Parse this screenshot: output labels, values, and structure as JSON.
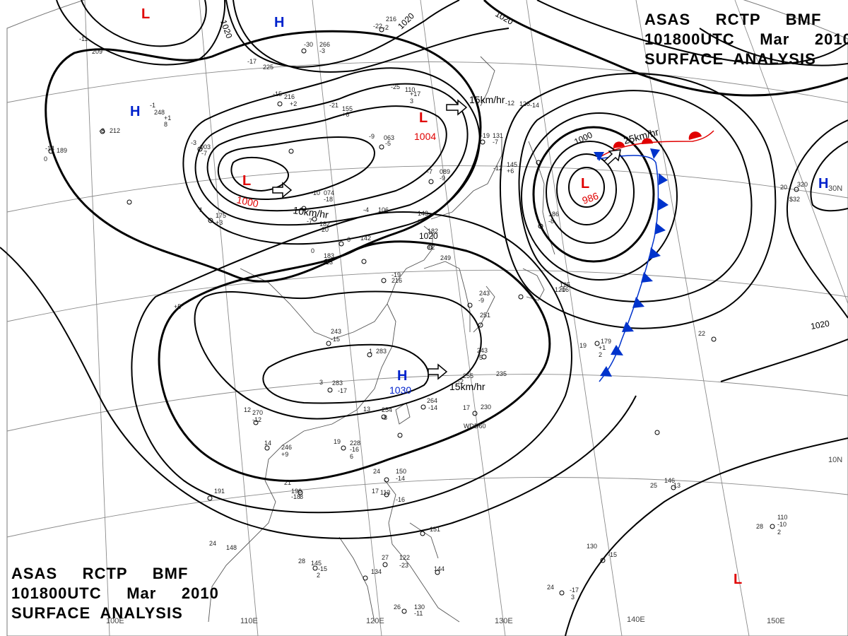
{
  "title": {
    "line1": "ASAS     RCTP     BMF",
    "line2": "101800UTC     Mar     2010",
    "line3": "SURFACE  ANALYSIS"
  },
  "colors": {
    "high": "#0022cc",
    "low": "#e00000",
    "cold_front": "#0033cc",
    "warm_front": "#e00000",
    "isobar": "#000000",
    "coast": "#444444",
    "grid": "#777777"
  },
  "longitude_labels": [
    "100E",
    "110E",
    "120E",
    "130E",
    "140E",
    "150E"
  ],
  "latitude_labels": [
    "30N",
    "10N"
  ],
  "pressure_centers": [
    {
      "type": "L",
      "value": ""
    },
    {
      "type": "H",
      "value": ""
    },
    {
      "type": "H",
      "value": ""
    },
    {
      "type": "L",
      "value": "1004"
    },
    {
      "type": "L",
      "value": "1000"
    },
    {
      "type": "L",
      "value": "986"
    },
    {
      "type": "H",
      "value": "1030"
    },
    {
      "type": "H",
      "value": ""
    },
    {
      "type": "L",
      "value": ""
    }
  ],
  "isobar_labels": [
    "1020",
    "1020",
    "1020",
    "1020",
    "1000",
    "1020"
  ],
  "motion_labels": [
    "15km/hr",
    "10km/hr",
    "25km/hr",
    "15km/hr"
  ],
  "station_labels": [
    "216",
    "-22",
    "-2",
    "266",
    "-30",
    "-3",
    "209",
    "-11",
    "225",
    "-17",
    "248",
    "-1",
    "+1",
    "8",
    "212",
    "-8",
    "189",
    "-14",
    "0",
    "155",
    "-21",
    "+6",
    "110",
    "-25",
    "+17",
    "3",
    "216",
    "-15",
    "+2",
    "003",
    "-3",
    "-7",
    "126",
    "-12",
    "-14",
    "063",
    "-9",
    "-5",
    "131",
    "-19",
    "-7",
    "145",
    "-12",
    "+6",
    "089",
    "-7",
    "-9",
    "074",
    "-10",
    "-18",
    "106",
    "-4",
    "143",
    "-9",
    "175",
    "1",
    "+3",
    "182",
    "-7",
    "-20",
    "142",
    "-6",
    "183",
    "0",
    "-13",
    "182",
    "+2",
    "249",
    "216",
    "-19",
    "243",
    "-9",
    "251",
    "243",
    "-15",
    "283",
    "1",
    "283",
    "3",
    "-17",
    "243",
    "-5",
    "255",
    "-2",
    "235",
    "+5",
    "270",
    "12",
    "-12",
    "264",
    "-14",
    "254",
    "13",
    "-8",
    "230",
    "17",
    "WDD60",
    "246",
    "14",
    "+9",
    "228",
    "19",
    "-16",
    "6",
    "196",
    "21",
    "-18",
    "8",
    "191",
    "150",
    "24",
    "-14",
    "113",
    "17",
    "-16",
    "151",
    "148",
    "24",
    "145",
    "28",
    "-15",
    "2",
    "122",
    "27",
    "-23",
    "144",
    "134",
    "130",
    "26",
    "-11",
    "179",
    "19",
    "+1",
    "2",
    "146",
    "25",
    "-13",
    "110",
    "28",
    "-10",
    "2",
    "130",
    "-15",
    "24",
    "-17",
    "3",
    "320",
    "20",
    "$32",
    "22",
    "186",
    "-8",
    "125",
    "-16",
    "120",
    "-15"
  ]
}
